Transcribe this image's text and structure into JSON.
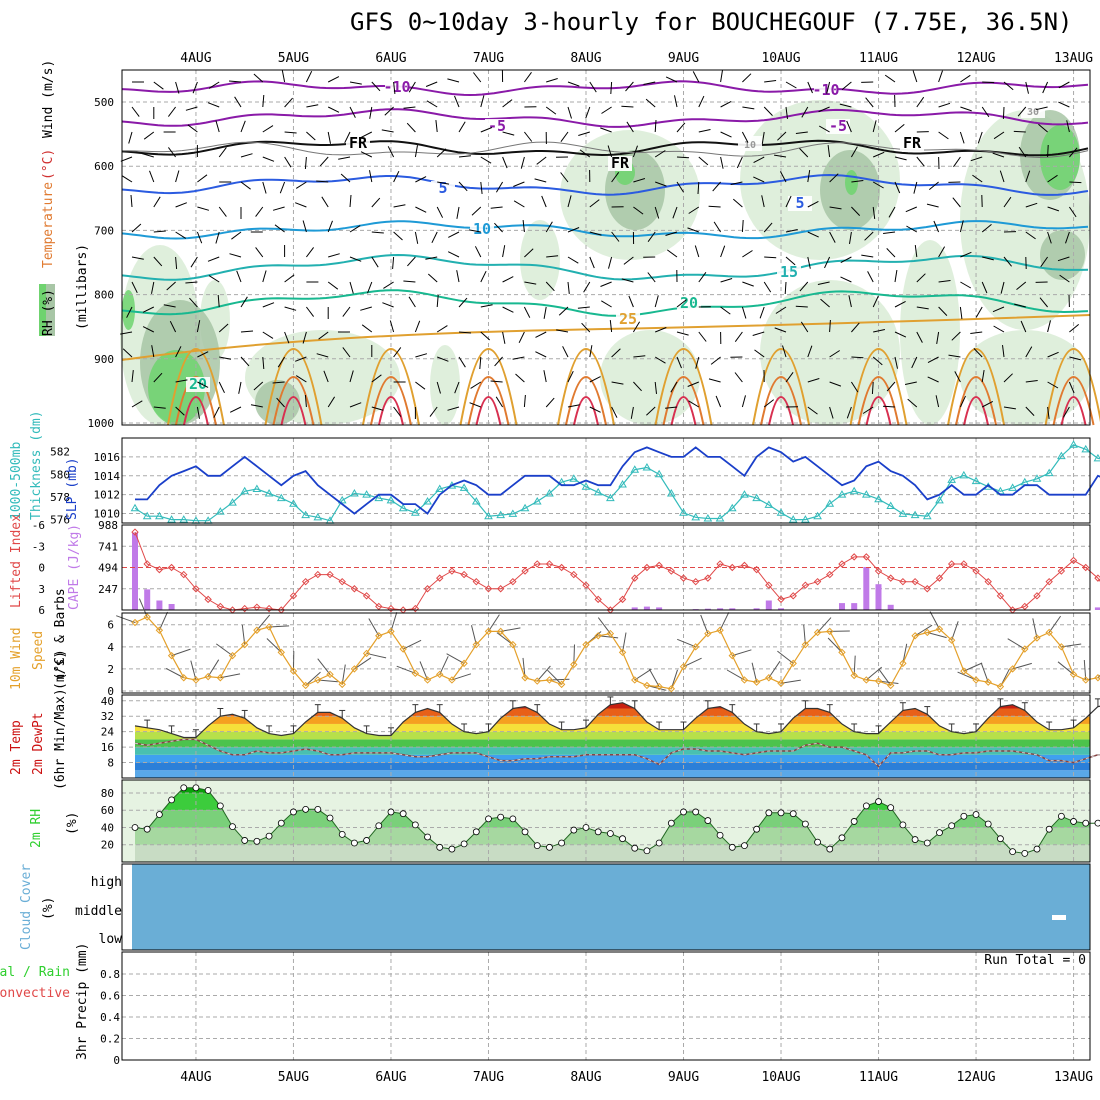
{
  "title": "GFS 0~10day 3-hourly for BOUCHEGOUF (7.75E, 36.5N)",
  "day_labels": [
    "4AUG",
    "5AUG",
    "6AUG",
    "7AUG",
    "8AUG",
    "9AUG",
    "10AUG",
    "11AUG",
    "12AUG",
    "13AUG"
  ],
  "colors": {
    "grid": "#aaaaaa",
    "rh_fill": "#d9ecd6",
    "rh_dark": "#a8c6a6",
    "rh_green": "#6fd36f",
    "slp": "#1a3fc9",
    "thickness": "#33bbbb",
    "lifted": "#e04848",
    "cape": "#c07ae8",
    "wind10": "#e4a02a",
    "temp_red": "#cc1111",
    "rh2m": "#2fcf2f",
    "cloud": "#6aaed6"
  },
  "panels": {
    "upper": {
      "legend": {
        "rh": "RH (%)",
        "temperature": "Temperature",
        "unit": "(°C)",
        "wind": "Wind (m/s)",
        "pressure": "(millibars)"
      },
      "pressure_ticks": [
        "500",
        "600",
        "700",
        "800",
        "900",
        "1000"
      ],
      "contour_labels": {
        "m10": "-10",
        "m5": "-5",
        "fr": "FR",
        "p5": "5",
        "p10": "10",
        "p15": "15",
        "p20": "20",
        "p25": "25",
        "p20low": "20",
        "rh10": "10",
        "rh30": "30"
      }
    },
    "slp": {
      "label_top": "1000-500mb",
      "label_mid": "Thickness (dm)",
      "label_slp": "SLP (mb)",
      "thickness_ticks": [
        "582",
        "580",
        "578",
        "576"
      ],
      "slp_ticks": [
        "1016",
        "1014",
        "1012",
        "1010"
      ]
    },
    "lifted": {
      "label_li": "Lifted Index",
      "label_cape": "CAPE (J/kg)",
      "li_ticks": [
        "-6",
        "-3",
        "0",
        "3",
        "6"
      ],
      "cape_ticks": [
        "988",
        "741",
        "494",
        "247"
      ]
    },
    "wind10m": {
      "label_a": "10m Wind",
      "label_b": "Speed",
      "label_c": "(m/s) & Barbs",
      "ticks": [
        "6",
        "4",
        "2",
        "0"
      ]
    },
    "temp2m": {
      "label_a": "2m Temp",
      "label_b": "2m DewPt",
      "label_c": "(6hr Min/Max) (°C)",
      "ticks": [
        "40",
        "32",
        "24",
        "16",
        "8"
      ]
    },
    "rh2m": {
      "label_a": "2m RH",
      "label_b": "(%)",
      "ticks": [
        "80",
        "60",
        "40",
        "20"
      ]
    },
    "cloud": {
      "label_a": "Cloud Cover",
      "label_b": "(%)",
      "levels": [
        "high",
        "middle",
        "low"
      ]
    },
    "precip": {
      "label_total": "Total / Rain",
      "label_conv": "Convective",
      "label_axis": "3hr Precip (mm)",
      "ticks": [
        "0.8",
        "0.6",
        "0.4",
        "0.2",
        "0"
      ],
      "run_total": "Run Total = 0"
    }
  },
  "chart_data": {
    "type": "line",
    "title": "GFS 0~10day 3-hourly for BOUCHEGOUF (7.75E, 36.5N)",
    "x_start_hours": 0,
    "x_step_hours": 3,
    "xlim_hours": [
      0,
      240
    ],
    "day_label_hour_offset": 15,
    "series": [
      {
        "name": "SLP (mb)",
        "ylim": [
          1009,
          1018
        ],
        "values": [
          1011.5,
          1011.5,
          1013,
          1014,
          1014.5,
          1015,
          1014,
          1014,
          1015,
          1016,
          1015,
          1014,
          1013,
          1014,
          1014.5,
          1013,
          1012,
          1011,
          1010,
          1011,
          1012,
          1012,
          1011,
          1011,
          1010,
          1012,
          1013,
          1013.5,
          1013,
          1012,
          1012,
          1013,
          1014,
          1014,
          1014,
          1013,
          1013,
          1013.5,
          1013,
          1013,
          1015,
          1016.5,
          1017,
          1016.5,
          1016,
          1016,
          1017,
          1016,
          1016,
          1015,
          1014,
          1016,
          1017,
          1016.5,
          1015.5,
          1016,
          1015,
          1014,
          1013,
          1013.5,
          1015,
          1015.5,
          1014.5,
          1014,
          1013,
          1011.5,
          1012,
          1013,
          1012,
          1012,
          1013,
          1012,
          1012,
          1013,
          1013,
          1012,
          1012,
          1012,
          1012,
          1014,
          1013.5,
          1012,
          1012.5
        ]
      },
      {
        "name": "1000-500mb Thickness (dm)",
        "ylim": [
          575.7,
          583.2
        ],
        "values": [
          577,
          576.3,
          576.3,
          576,
          576,
          575.9,
          575.9,
          576.7,
          577.5,
          578.5,
          578.7,
          578.3,
          577.9,
          577.4,
          576.4,
          576.2,
          575.9,
          577.7,
          578.3,
          578.2,
          577.9,
          577.7,
          577,
          576.6,
          577.6,
          578.7,
          579,
          578.8,
          577.6,
          576.3,
          576.4,
          576.5,
          577,
          577.6,
          578.3,
          579.3,
          579.6,
          578.9,
          578.4,
          577.9,
          579.1,
          580.4,
          580.6,
          580,
          578.3,
          576.6,
          576.2,
          576.1,
          576.1,
          577,
          578.2,
          577.9,
          577.3,
          576.6,
          576,
          576,
          576.3,
          577.4,
          578.2,
          578.5,
          578.2,
          577.8,
          577.2,
          576.5,
          576.4,
          576.3,
          577.7,
          579.5,
          579.9,
          579.4,
          578.9,
          578.5,
          578.8,
          579.3,
          579.6,
          580.1,
          581.6,
          582.6,
          582.2,
          581.4,
          581.3,
          581.3,
          581.1
        ]
      },
      {
        "name": "Lifted Index",
        "ylim": [
          6,
          -6
        ],
        "values": [
          -5,
          -0.5,
          0.3,
          0,
          1,
          3,
          4.5,
          5.5,
          6,
          5.8,
          5.6,
          5.8,
          6,
          4,
          2,
          1,
          1,
          2,
          3,
          4,
          5.5,
          5.8,
          6,
          5.8,
          3,
          1.5,
          0.5,
          1,
          2,
          3,
          3,
          2,
          0.5,
          -0.5,
          -0.5,
          0,
          1,
          2.5,
          4.5,
          6,
          4.5,
          1.5,
          0,
          -0.3,
          0.5,
          1.5,
          2,
          1.5,
          -0.5,
          0,
          -0.3,
          0.3,
          2.5,
          4.5,
          4,
          2.5,
          2,
          1,
          -0.5,
          -1.5,
          -1.5,
          0.5,
          1.5,
          2,
          2,
          3,
          1.5,
          -0.5,
          -0.5,
          0.5,
          2,
          4,
          6,
          5.5,
          4,
          2,
          0.5,
          -1,
          0,
          1.5,
          4,
          5,
          6
        ]
      },
      {
        "name": "CAPE (J/kg)",
        "ylim": [
          0,
          988
        ],
        "type": "bar",
        "values": [
          900,
          240,
          110,
          70,
          0,
          0,
          0,
          0,
          0,
          0,
          0,
          0,
          0,
          0,
          0,
          0,
          0,
          0,
          0,
          0,
          0,
          0,
          0,
          0,
          0,
          0,
          0,
          0,
          0,
          0,
          0,
          0,
          0,
          0,
          0,
          0,
          0,
          0,
          0,
          0,
          0,
          30,
          40,
          30,
          0,
          0,
          10,
          15,
          20,
          20,
          0,
          20,
          110,
          20,
          0,
          0,
          0,
          0,
          80,
          80,
          500,
          300,
          60,
          0,
          0,
          0,
          0,
          0,
          0,
          0,
          0,
          0,
          0,
          0,
          0,
          0,
          0,
          0,
          0,
          30,
          0,
          0,
          0
        ]
      },
      {
        "name": "10m Wind Speed (m/s)",
        "ylim": [
          0,
          6.7
        ],
        "values": [
          6.2,
          6.7,
          5.5,
          3.2,
          1.2,
          1.0,
          1.3,
          1.2,
          3.2,
          4.2,
          5.5,
          5.8,
          3.5,
          1.8,
          0.5,
          1.0,
          1.5,
          0.6,
          2.0,
          3.4,
          5.0,
          5.4,
          3.8,
          1.6,
          1.0,
          1.5,
          1.0,
          2.5,
          4.2,
          5.4,
          5.4,
          4.2,
          1.2,
          0.9,
          1.0,
          0.6,
          2.4,
          4.2,
          5.0,
          5.2,
          3.5,
          1.0,
          0.5,
          0.4,
          0.2,
          2.2,
          4.0,
          5.2,
          5.5,
          3.2,
          1.0,
          0.8,
          1.2,
          0.7,
          2.5,
          4.2,
          5.3,
          5.4,
          3.5,
          1.4,
          1.0,
          0.9,
          0.5,
          2.5,
          5.0,
          5.3,
          5.6,
          4.6,
          1.8,
          1.0,
          0.8,
          0.4,
          2.0,
          3.8,
          4.8,
          5.3,
          4.0,
          1.5,
          1.0,
          1.2,
          0.8,
          0.6,
          1.2
        ]
      },
      {
        "name": "2m Temp (°C)",
        "ylim": [
          0,
          43
        ],
        "values": [
          27,
          26,
          25,
          23,
          21,
          21,
          27,
          32,
          33,
          31,
          26,
          23,
          22,
          23,
          29,
          34,
          34,
          31,
          26,
          23,
          22,
          22,
          29,
          34,
          36,
          34,
          28,
          24,
          23,
          24,
          31,
          36,
          37,
          34,
          28,
          25,
          25,
          26,
          33,
          38,
          39,
          36,
          29,
          25,
          25,
          25,
          31,
          36,
          37,
          34,
          28,
          24,
          23,
          24,
          31,
          36,
          36,
          34,
          28,
          24,
          23,
          23,
          29,
          35,
          36,
          33,
          27,
          24,
          23,
          24,
          31,
          37,
          38,
          35,
          29,
          25,
          25,
          26,
          31,
          37,
          38,
          35,
          28,
          26
        ]
      },
      {
        "name": "2m DewPt (°C)",
        "ylim": [
          0,
          43
        ],
        "values": [
          18,
          17,
          18,
          19,
          20,
          20,
          17,
          14,
          12,
          12,
          14,
          13,
          13,
          14,
          15,
          14,
          12,
          12,
          13,
          13,
          13,
          13,
          12,
          11,
          11,
          12,
          13,
          13,
          13,
          11,
          9,
          9,
          10,
          10,
          11,
          11,
          11,
          12,
          12,
          12,
          12,
          12,
          10,
          7,
          13,
          15,
          15,
          14,
          14,
          13,
          12,
          13,
          14,
          14,
          14,
          17,
          18,
          16,
          16,
          14,
          12,
          6,
          13,
          13,
          14,
          14,
          12,
          12,
          13,
          13,
          14,
          14,
          14,
          13,
          12,
          9,
          9,
          8,
          10,
          12,
          12,
          12,
          11
        ]
      },
      {
        "name": "2m RH (%)",
        "ylim": [
          0,
          95
        ],
        "values": [
          40,
          38,
          55,
          72,
          86,
          86,
          83,
          65,
          41,
          25,
          24,
          30,
          45,
          58,
          61,
          61,
          51,
          32,
          22,
          25,
          42,
          58,
          56,
          43,
          29,
          17,
          15,
          21,
          35,
          50,
          52,
          50,
          35,
          19,
          17,
          22,
          37,
          40,
          35,
          33,
          27,
          16,
          13,
          22,
          45,
          58,
          58,
          48,
          31,
          17,
          19,
          38,
          57,
          57,
          56,
          44,
          23,
          15,
          28,
          47,
          65,
          70,
          63,
          43,
          26,
          22,
          34,
          42,
          53,
          55,
          44,
          27,
          12,
          10,
          15,
          38,
          53,
          47,
          45,
          45,
          34,
          32,
          31
        ]
      },
      {
        "name": "3hr Precip (mm)",
        "ylim": [
          0,
          1
        ],
        "values": []
      }
    ]
  }
}
